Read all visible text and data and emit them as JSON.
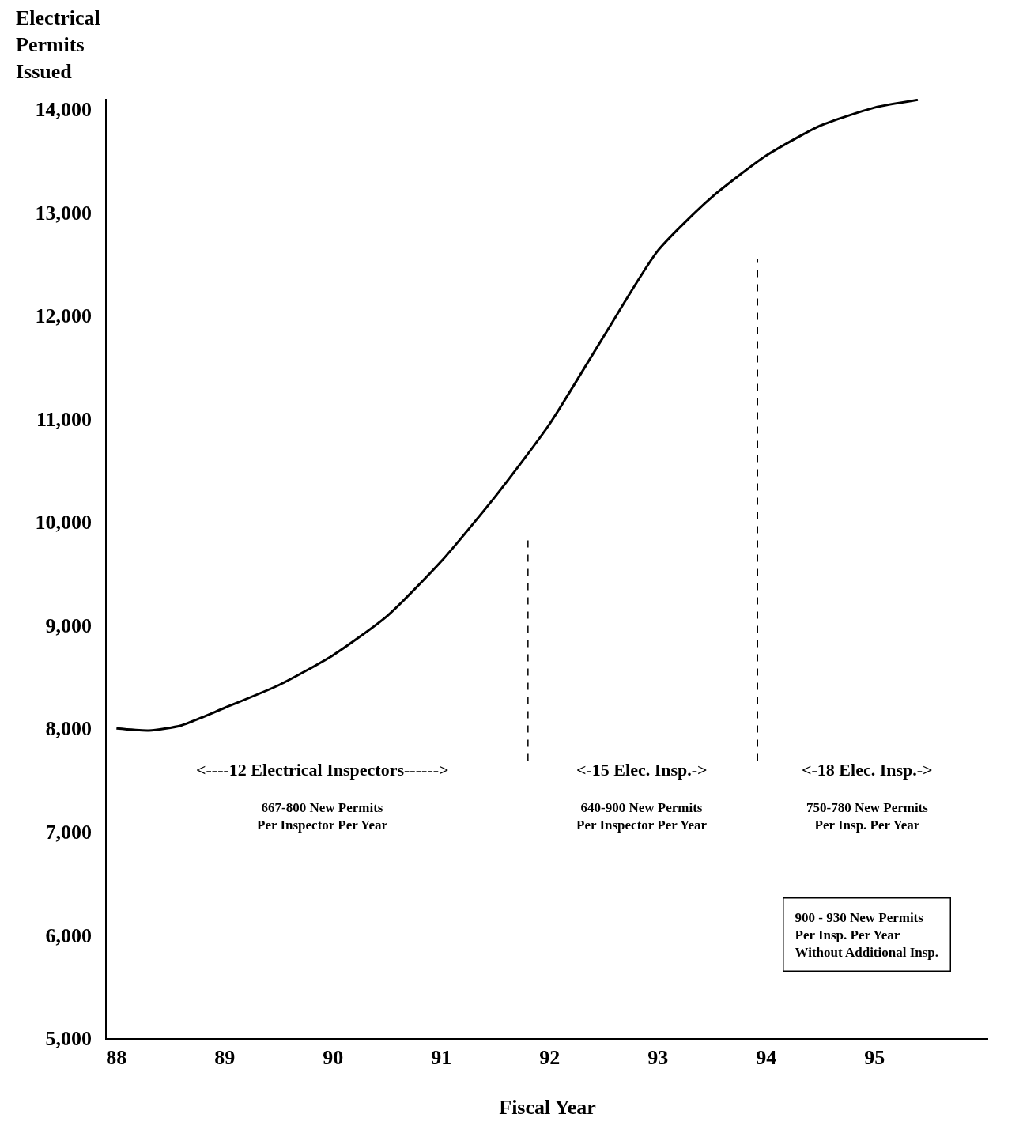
{
  "chart_data": {
    "type": "line",
    "ylabel": "Electrical\nPermits\nIssued",
    "xlabel": "Fiscal Year",
    "x": [
      88,
      88.3,
      88.6,
      89,
      89.5,
      90,
      90.5,
      91,
      91.5,
      92,
      92.5,
      93,
      93.5,
      94,
      94.5,
      95,
      95.4
    ],
    "series": [
      {
        "color": "#000000",
        "values": [
          8000,
          7980,
          8030,
          8200,
          8420,
          8710,
          9090,
          9620,
          10250,
          10950,
          11800,
          12630,
          13150,
          13550,
          13840,
          14015,
          14090
        ]
      }
    ],
    "xlim": [
      87.91,
      96.05
    ],
    "ylim": [
      5000,
      14100
    ],
    "xticks": [
      88,
      89,
      90,
      91,
      92,
      93,
      94,
      95
    ],
    "yticks": [
      {
        "value": 5000,
        "label": "5,000"
      },
      {
        "value": 6000,
        "label": "6,000"
      },
      {
        "value": 7000,
        "label": "7,000"
      },
      {
        "value": 8000,
        "label": "8,000"
      },
      {
        "value": 9000,
        "label": "9,000"
      },
      {
        "value": 10000,
        "label": "10,000"
      },
      {
        "value": 11000,
        "label": "11,000"
      },
      {
        "value": 12000,
        "label": "12,000"
      },
      {
        "value": 13000,
        "label": "13,000"
      },
      {
        "value": 14000,
        "label": "14,000"
      }
    ],
    "ref_lines": [
      {
        "axis": "x",
        "value": 91.8,
        "line_style": "dashed",
        "color": "#000000"
      },
      {
        "axis": "x",
        "value": 93.92,
        "line_style": "dashed",
        "color": "#000000"
      }
    ],
    "annotations": [
      "<----12 Electrical Inspectors------>",
      "667-800 New Permits\nPer Inspector Per Year",
      "<-15 Elec. Insp.->",
      "640-900 New Permits\nPer Inspector Per Year",
      "<-18 Elec. Insp.->",
      "750-780 New Permits\nPer Insp. Per Year",
      "900 - 930 New Permits\nPer Insp. Per Year\nWithout Additional Insp."
    ],
    "legend": false,
    "marker": "none",
    "line_style": "solid"
  }
}
